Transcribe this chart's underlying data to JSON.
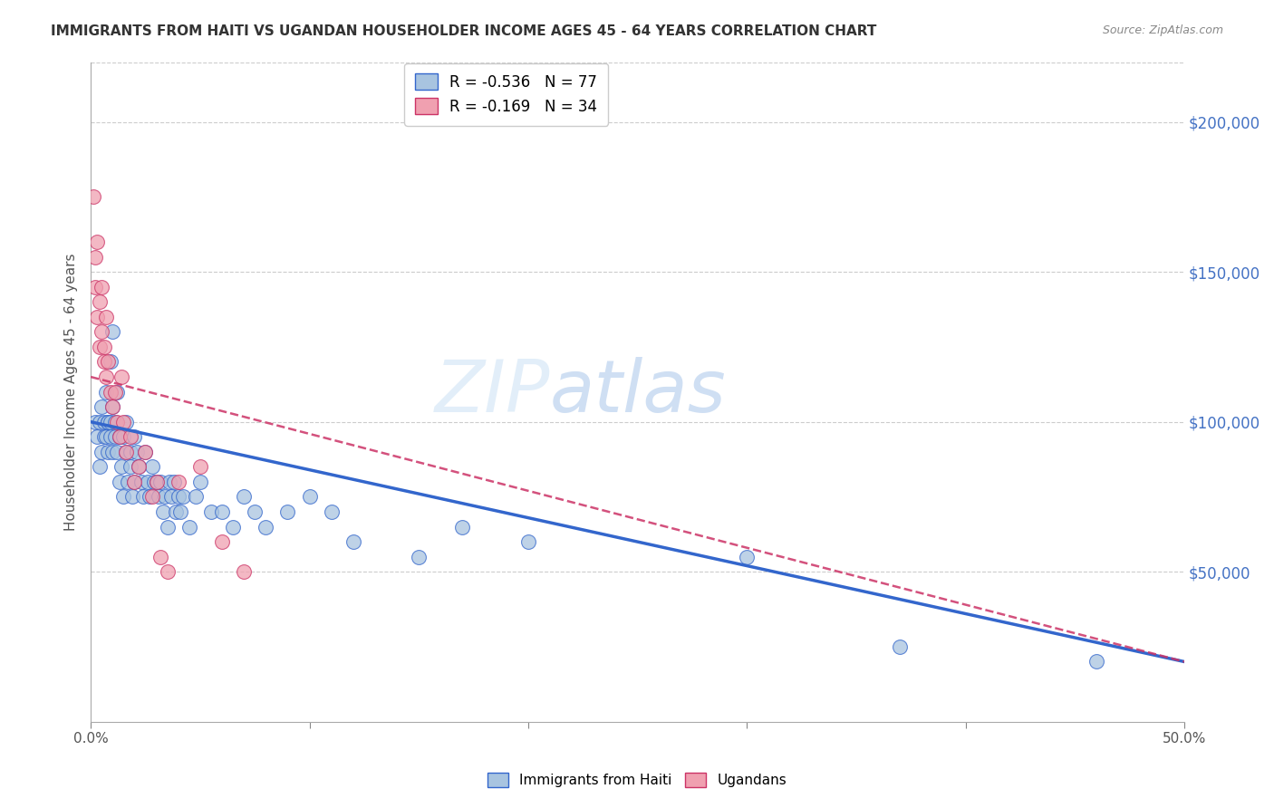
{
  "title": "IMMIGRANTS FROM HAITI VS UGANDAN HOUSEHOLDER INCOME AGES 45 - 64 YEARS CORRELATION CHART",
  "source": "Source: ZipAtlas.com",
  "ylabel": "Householder Income Ages 45 - 64 years",
  "xlim": [
    0.0,
    0.5
  ],
  "ylim": [
    0,
    220000
  ],
  "yticks_right": [
    50000,
    100000,
    150000,
    200000
  ],
  "ytick_labels_right": [
    "$50,000",
    "$100,000",
    "$150,000",
    "$200,000"
  ],
  "legend1_label": "R = -0.536   N = 77",
  "legend2_label": "R = -0.169   N = 34",
  "watermark": "ZIPatlas",
  "haiti_color": "#a8c4e0",
  "uganda_color": "#f0a0b0",
  "haiti_line_color": "#3366cc",
  "uganda_line_color": "#cc3366",
  "haiti_N": 77,
  "uganda_N": 34,
  "haiti_scatter_x": [
    0.002,
    0.003,
    0.004,
    0.004,
    0.005,
    0.005,
    0.006,
    0.006,
    0.007,
    0.007,
    0.008,
    0.008,
    0.008,
    0.009,
    0.009,
    0.009,
    0.01,
    0.01,
    0.01,
    0.011,
    0.011,
    0.012,
    0.012,
    0.013,
    0.013,
    0.014,
    0.015,
    0.015,
    0.016,
    0.016,
    0.017,
    0.018,
    0.018,
    0.019,
    0.02,
    0.02,
    0.021,
    0.022,
    0.023,
    0.024,
    0.025,
    0.026,
    0.027,
    0.028,
    0.029,
    0.03,
    0.031,
    0.032,
    0.033,
    0.034,
    0.035,
    0.036,
    0.037,
    0.038,
    0.039,
    0.04,
    0.041,
    0.042,
    0.045,
    0.048,
    0.05,
    0.055,
    0.06,
    0.065,
    0.07,
    0.075,
    0.08,
    0.09,
    0.1,
    0.11,
    0.12,
    0.15,
    0.17,
    0.2,
    0.3,
    0.37,
    0.46
  ],
  "haiti_scatter_y": [
    100000,
    95000,
    100000,
    85000,
    90000,
    105000,
    100000,
    95000,
    110000,
    95000,
    100000,
    100000,
    90000,
    95000,
    100000,
    120000,
    130000,
    90000,
    105000,
    100000,
    95000,
    110000,
    90000,
    95000,
    80000,
    85000,
    95000,
    75000,
    100000,
    90000,
    80000,
    85000,
    90000,
    75000,
    95000,
    80000,
    90000,
    85000,
    80000,
    75000,
    90000,
    80000,
    75000,
    85000,
    80000,
    80000,
    75000,
    80000,
    70000,
    75000,
    65000,
    80000,
    75000,
    80000,
    70000,
    75000,
    70000,
    75000,
    65000,
    75000,
    80000,
    70000,
    70000,
    65000,
    75000,
    70000,
    65000,
    70000,
    75000,
    70000,
    60000,
    55000,
    65000,
    60000,
    55000,
    25000,
    20000
  ],
  "uganda_scatter_x": [
    0.001,
    0.002,
    0.002,
    0.003,
    0.003,
    0.004,
    0.004,
    0.005,
    0.005,
    0.006,
    0.006,
    0.007,
    0.007,
    0.008,
    0.009,
    0.01,
    0.011,
    0.012,
    0.013,
    0.014,
    0.015,
    0.016,
    0.018,
    0.02,
    0.022,
    0.025,
    0.028,
    0.03,
    0.032,
    0.035,
    0.04,
    0.05,
    0.06,
    0.07
  ],
  "uganda_scatter_y": [
    175000,
    145000,
    155000,
    160000,
    135000,
    125000,
    140000,
    145000,
    130000,
    125000,
    120000,
    115000,
    135000,
    120000,
    110000,
    105000,
    110000,
    100000,
    95000,
    115000,
    100000,
    90000,
    95000,
    80000,
    85000,
    90000,
    75000,
    80000,
    55000,
    50000,
    80000,
    85000,
    60000,
    50000
  ],
  "haiti_line_x0": 0.0,
  "haiti_line_y0": 100000,
  "haiti_line_x1": 0.5,
  "haiti_line_y1": 20000,
  "uganda_line_x0": 0.0,
  "uganda_line_y0": 115000,
  "uganda_line_x1": 0.5,
  "uganda_line_y1": 20000
}
